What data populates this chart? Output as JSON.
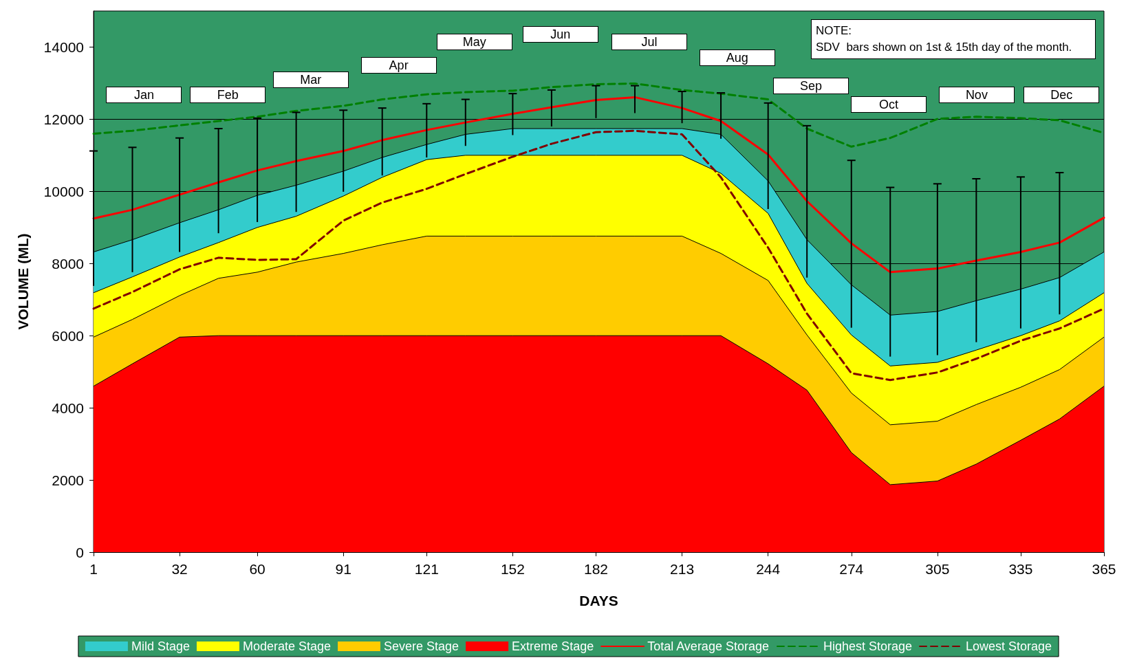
{
  "chart_data": {
    "type": "area",
    "xlabel": "DAYS",
    "ylabel": "VOLUME (ML)",
    "stacked": true,
    "grid": "y",
    "legend": "bottom",
    "marker": "none",
    "x": [
      1,
      15,
      32,
      46,
      60,
      74,
      91,
      105,
      121,
      135,
      152,
      166,
      182,
      196,
      213,
      227,
      244,
      258,
      274,
      288,
      305,
      319,
      335,
      349,
      365
    ],
    "xlim": [
      1,
      365
    ],
    "xticks": [
      1,
      32,
      60,
      91,
      121,
      152,
      182,
      213,
      244,
      274,
      305,
      335,
      365
    ],
    "ylim": [
      0,
      15000
    ],
    "yticks": [
      0,
      2000,
      4000,
      6000,
      8000,
      10000,
      12000,
      14000
    ],
    "series": [
      {
        "name": "Extreme Stage",
        "color": "#ff0000",
        "values": [
          4600,
          5220,
          5960,
          6000,
          6000,
          6000,
          6000,
          6000,
          6000,
          6000,
          6000,
          6000,
          6000,
          6000,
          6000,
          6000,
          5220,
          4490,
          2760,
          1870,
          1970,
          2440,
          3100,
          3690,
          4600
        ]
      },
      {
        "name": "Severe Stage",
        "color": "#ffcc00",
        "values": [
          1360,
          1230,
          1150,
          1590,
          1760,
          2040,
          2280,
          2520,
          2760,
          2760,
          2760,
          2760,
          2760,
          2760,
          2760,
          2280,
          2310,
          1530,
          1650,
          1660,
          1660,
          1650,
          1470,
          1370,
          1360
        ]
      },
      {
        "name": "Moderate Stage",
        "color": "#ffff00",
        "values": [
          1230,
          1180,
          1070,
          990,
          1240,
          1270,
          1590,
          1870,
          2120,
          2240,
          2240,
          2240,
          2240,
          2240,
          2240,
          2220,
          1860,
          1430,
          1610,
          1630,
          1630,
          1510,
          1430,
          1350,
          1230
        ]
      },
      {
        "name": "Mild Stage",
        "color": "#33cccc",
        "values": [
          1130,
          1030,
          950,
          910,
          890,
          860,
          690,
          550,
          420,
          580,
          740,
          740,
          740,
          740,
          740,
          1080,
          900,
          1210,
          1390,
          1410,
          1410,
          1370,
          1290,
          1200,
          1130
        ]
      },
      {
        "name": "Total Average Storage",
        "type": "line",
        "color": "#ff0000",
        "line_style": "solid",
        "values": [
          9250,
          9490,
          9910,
          10250,
          10580,
          10840,
          11120,
          11420,
          11700,
          11910,
          12150,
          12330,
          12530,
          12610,
          12310,
          11950,
          11020,
          9730,
          8560,
          7760,
          7860,
          8080,
          8320,
          8580,
          9270
        ],
        "errors": [
          [
            7380,
            11120
          ],
          [
            7760,
            11220
          ],
          [
            8320,
            11480
          ],
          [
            8840,
            11740
          ],
          [
            9150,
            12030
          ],
          [
            9430,
            12190
          ],
          [
            9990,
            12250
          ],
          [
            10440,
            12310
          ],
          [
            10940,
            12430
          ],
          [
            11260,
            12550
          ],
          [
            11560,
            12710
          ],
          [
            11800,
            12810
          ],
          [
            12030,
            12930
          ],
          [
            12170,
            12930
          ],
          [
            11890,
            12770
          ],
          [
            11460,
            12730
          ],
          [
            9510,
            12450
          ],
          [
            7610,
            11820
          ],
          [
            6220,
            10860
          ],
          [
            5420,
            10110
          ],
          [
            5460,
            10210
          ],
          [
            5820,
            10350
          ],
          [
            6200,
            10400
          ],
          [
            6590,
            10520
          ],
          null
        ]
      },
      {
        "name": "Highest Storage",
        "type": "line",
        "color": "#008000",
        "line_style": "dashed",
        "values": [
          11600,
          11680,
          11830,
          11950,
          12070,
          12230,
          12370,
          12550,
          12690,
          12750,
          12790,
          12890,
          12970,
          12990,
          12810,
          12710,
          12550,
          11740,
          11240,
          11480,
          12010,
          12070,
          12030,
          11970,
          11620
        ]
      },
      {
        "name": "Lowest Storage",
        "type": "line",
        "color": "#800000",
        "line_style": "dashed",
        "values": [
          6750,
          7210,
          7840,
          8160,
          8100,
          8120,
          9190,
          9690,
          10070,
          10480,
          10960,
          11320,
          11640,
          11680,
          11580,
          10390,
          8440,
          6610,
          4960,
          4770,
          4980,
          5360,
          5860,
          6200,
          6750
        ]
      }
    ],
    "annotations": [
      "Jan",
      "Feb",
      "Mar",
      "Apr",
      "May",
      "Jun",
      "Jul",
      "Aug",
      "Sep",
      "Oct",
      "Nov",
      "Dec",
      "NOTE:\nSDV  bars shown on 1st & 15th day of the month."
    ]
  }
}
